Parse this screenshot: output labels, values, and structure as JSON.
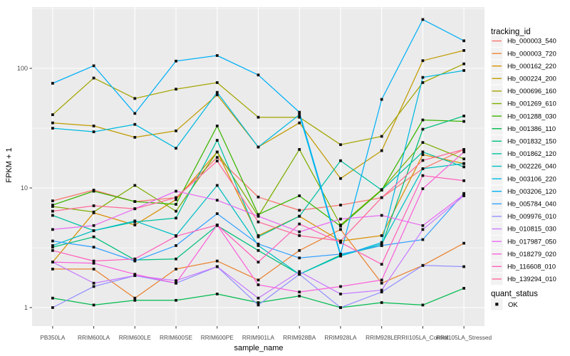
{
  "figure": {
    "y_axis": {
      "title": "FPKM + 1",
      "tick_labels": [
        "1",
        "10",
        "100"
      ]
    },
    "x_axis": {
      "title": "sample_name"
    },
    "legend": {
      "tracking_title": "tracking_id",
      "quant_title": "quant_status",
      "quant_ok_label": "OK"
    },
    "style": {
      "panel_bg": "#EBEBEB",
      "grid_color": "#FFFFFF",
      "tick_label_color": "#4D4D4D",
      "axis_title_color": "#000000",
      "point_color": "#111111",
      "legend_key_bg": "#F2F2F2"
    }
  },
  "chart_data": {
    "type": "line",
    "title": "",
    "xlabel": "sample_name",
    "ylabel": "FPKM + 1",
    "y_scale": "log10",
    "grid": true,
    "legend_position": "right",
    "point_shape": "filled-black-square",
    "y_major_ticks": [
      1,
      10,
      100
    ],
    "y_tick_labels": [
      "1",
      "10",
      "100"
    ],
    "y_minor_gridlines": [
      3.16,
      31.6,
      316
    ],
    "ylim": [
      0.72,
      330
    ],
    "categories": [
      "PB350LA",
      "RRIM600LA",
      "RRIM600LE",
      "RRIM600SE",
      "RRIM600PE",
      "RRIM901LA",
      "RRIM928BA",
      "RRIM928LA",
      "RRIM928LE",
      "RRII105LA_Control",
      "RRII105LA_Stressed"
    ],
    "series": [
      {
        "name": "Hb_000003_540",
        "color": "#F8766D",
        "values": [
          7.8,
          9.6,
          7.7,
          8.3,
          18,
          8.4,
          6.5,
          7.2,
          8.3,
          14.5,
          21
        ]
      },
      {
        "name": "Hb_000003_720",
        "color": "#EA8331",
        "values": [
          2.1,
          2.1,
          1.2,
          2.1,
          2.45,
          1.7,
          3.0,
          4.5,
          1.6,
          2.25,
          3.45
        ]
      },
      {
        "name": "Hb_000162_220",
        "color": "#D89000",
        "values": [
          2.4,
          6.2,
          4.9,
          8.0,
          20,
          4.0,
          5.8,
          3.6,
          4.0,
          19,
          16
        ]
      },
      {
        "name": "Hb_000224_200",
        "color": "#C09B00",
        "values": [
          35,
          33,
          26.5,
          30,
          60,
          22,
          35,
          12,
          20.5,
          116,
          141
        ]
      },
      {
        "name": "Hb_000696_160",
        "color": "#A3A500",
        "values": [
          41,
          83,
          56,
          67,
          76,
          39,
          39,
          23,
          27,
          76,
          109
        ]
      },
      {
        "name": "Hb_001269_610",
        "color": "#7CAE00",
        "values": [
          7.0,
          6.3,
          10.5,
          6.4,
          20,
          5.8,
          21,
          4.9,
          9.7,
          24,
          17.5
        ]
      },
      {
        "name": "Hb_001288_030",
        "color": "#39B600",
        "values": [
          7.2,
          9.4,
          7.7,
          7.3,
          33,
          6.0,
          8.6,
          4.8,
          9.6,
          37,
          36
        ]
      },
      {
        "name": "Hb_001386_110",
        "color": "#00BB4E",
        "values": [
          1.2,
          1.05,
          1.15,
          1.15,
          1.3,
          1.1,
          1.25,
          1.0,
          1.1,
          1.05,
          1.45
        ]
      },
      {
        "name": "Hb_001832_150",
        "color": "#00BF7D",
        "values": [
          3.2,
          3.9,
          2.5,
          2.55,
          4.85,
          3.0,
          1.9,
          2.75,
          3.3,
          31,
          40
        ]
      },
      {
        "name": "Hb_001862_120",
        "color": "#00C1A3",
        "values": [
          5.9,
          4.4,
          5.2,
          5.6,
          25,
          3.9,
          5.8,
          16.9,
          9.6,
          20,
          15
        ]
      },
      {
        "name": "Hb_002226_040",
        "color": "#00BFC4",
        "values": [
          3.3,
          4.4,
          5.3,
          4.0,
          10.5,
          3.3,
          1.9,
          2.7,
          3.4,
          14.5,
          16
        ]
      },
      {
        "name": "Hb_003106_220",
        "color": "#00BAE0",
        "values": [
          31.6,
          29.5,
          34,
          21.5,
          63,
          22,
          41,
          2.7,
          3.5,
          84,
          96
        ]
      },
      {
        "name": "Hb_003206_120",
        "color": "#00B0F6",
        "values": [
          75,
          105,
          42,
          115,
          128,
          88,
          43,
          2.8,
          55,
          256,
          170
        ]
      },
      {
        "name": "Hb_005784_040",
        "color": "#35A2FF",
        "values": [
          3.6,
          3.2,
          2.45,
          3.3,
          6.1,
          3.4,
          2.6,
          2.8,
          3.3,
          3.7,
          9.0
        ]
      },
      {
        "name": "Hb_009976_010",
        "color": "#9590FF",
        "values": [
          1.0,
          1.5,
          1.85,
          1.6,
          2.2,
          1.05,
          1.9,
          1.0,
          1.35,
          2.25,
          2.2
        ]
      },
      {
        "name": "Hb_010815_030",
        "color": "#C77CFF",
        "values": [
          2.4,
          1.6,
          1.85,
          1.68,
          2.2,
          1.2,
          2.0,
          1.3,
          1.4,
          4.5,
          8.6
        ]
      },
      {
        "name": "Hb_017987_050",
        "color": "#E76BF3",
        "values": [
          4.5,
          4.85,
          6.7,
          9.4,
          7.9,
          5.8,
          4.3,
          5.5,
          5.9,
          4.85,
          8.8
        ]
      },
      {
        "name": "Hb_018279_020",
        "color": "#FA62DB",
        "values": [
          2.4,
          2.35,
          1.9,
          1.6,
          4.9,
          1.55,
          1.35,
          1.5,
          1.7,
          9.85,
          20
        ]
      },
      {
        "name": "Hb_116608_010",
        "color": "#FF62BC",
        "values": [
          3.0,
          2.45,
          2.55,
          3.95,
          4.9,
          2.4,
          5.0,
          3.5,
          2.3,
          12.7,
          11.5
        ]
      },
      {
        "name": "Hb_139294_010",
        "color": "#FF6A98",
        "values": [
          6.4,
          7.1,
          6.7,
          8.3,
          16.8,
          5.2,
          4.0,
          3.6,
          8.3,
          17,
          21
        ]
      }
    ]
  }
}
